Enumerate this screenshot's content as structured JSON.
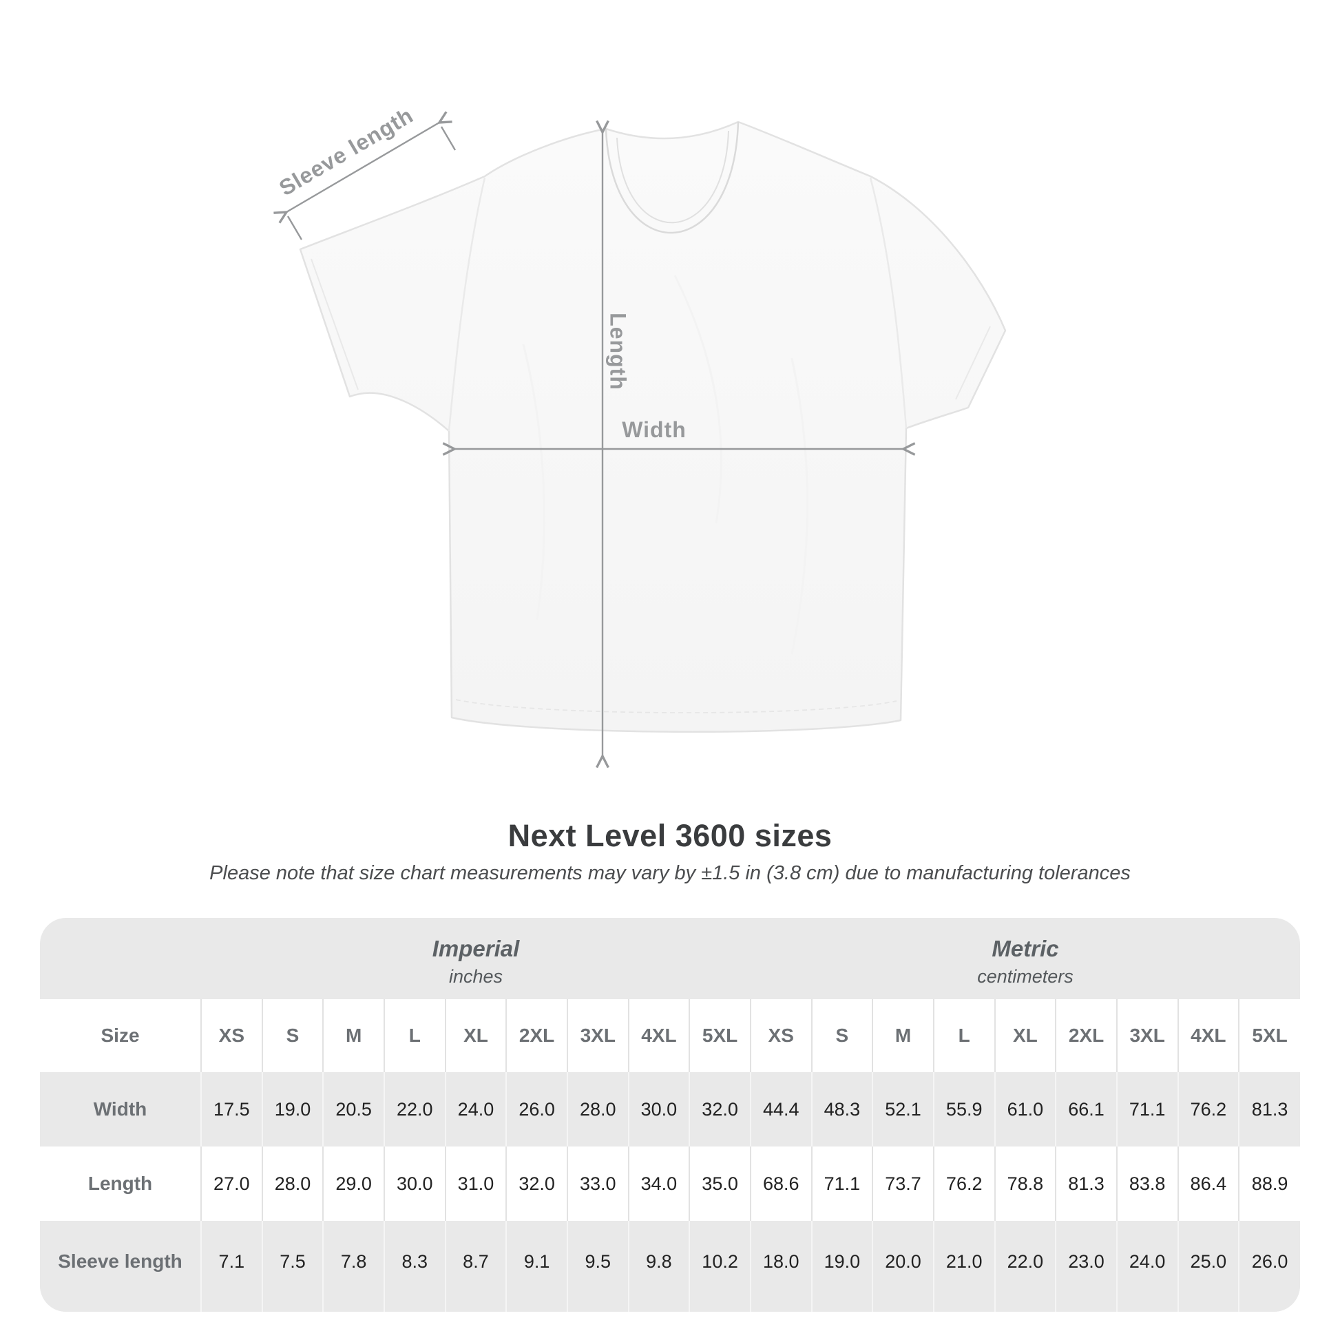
{
  "diagram": {
    "garment": "white-tshirt-front-view",
    "labels": {
      "sleeve": "Sleeve length",
      "length": "Length",
      "width": "Width"
    }
  },
  "title": "Next Level 3600 sizes",
  "note": "Please note that size chart measurements may vary by ±1.5 in (3.8 cm) due to manufacturing tolerances",
  "table": {
    "corner_label": "Size",
    "unit_groups": [
      {
        "name": "Imperial",
        "unit": "inches"
      },
      {
        "name": "Metric",
        "unit": "centimeters"
      }
    ],
    "sizes": [
      "XS",
      "S",
      "M",
      "L",
      "XL",
      "2XL",
      "3XL",
      "4XL",
      "5XL",
      "XS",
      "S",
      "M",
      "L",
      "XL",
      "2XL",
      "3XL",
      "4XL",
      "5XL"
    ],
    "rows": [
      {
        "label": "Width",
        "values": [
          "17.5",
          "19.0",
          "20.5",
          "22.0",
          "24.0",
          "26.0",
          "28.0",
          "30.0",
          "32.0",
          "44.4",
          "48.3",
          "52.1",
          "55.9",
          "61.0",
          "66.1",
          "71.1",
          "76.2",
          "81.3"
        ]
      },
      {
        "label": "Length",
        "values": [
          "27.0",
          "28.0",
          "29.0",
          "30.0",
          "31.0",
          "32.0",
          "33.0",
          "34.0",
          "35.0",
          "68.6",
          "71.1",
          "73.7",
          "76.2",
          "78.8",
          "81.3",
          "83.8",
          "86.4",
          "88.9"
        ]
      },
      {
        "label": "Sleeve length",
        "values": [
          "7.1",
          "7.5",
          "7.8",
          "8.3",
          "8.7",
          "9.1",
          "9.5",
          "9.8",
          "10.2",
          "18.0",
          "19.0",
          "20.0",
          "21.0",
          "22.0",
          "23.0",
          "24.0",
          "25.0",
          "26.0"
        ]
      }
    ]
  },
  "chart_data": {
    "type": "table",
    "title": "Next Level 3600 sizes",
    "note": "Please note that size chart measurements may vary by ±1.5 in (3.8 cm) due to manufacturing tolerances",
    "column_groups": [
      "Imperial (inches)",
      "Metric (centimeters)"
    ],
    "sizes": [
      "XS",
      "S",
      "M",
      "L",
      "XL",
      "2XL",
      "3XL",
      "4XL",
      "5XL"
    ],
    "rows": [
      {
        "measure": "Width",
        "imperial_in": [
          17.5,
          19.0,
          20.5,
          22.0,
          24.0,
          26.0,
          28.0,
          30.0,
          32.0
        ],
        "metric_cm": [
          44.4,
          48.3,
          52.1,
          55.9,
          61.0,
          66.1,
          71.1,
          76.2,
          81.3
        ]
      },
      {
        "measure": "Length",
        "imperial_in": [
          27.0,
          28.0,
          29.0,
          30.0,
          31.0,
          32.0,
          33.0,
          34.0,
          35.0
        ],
        "metric_cm": [
          68.6,
          71.1,
          73.7,
          76.2,
          78.8,
          81.3,
          83.8,
          86.4,
          88.9
        ]
      },
      {
        "measure": "Sleeve length",
        "imperial_in": [
          7.1,
          7.5,
          7.8,
          8.3,
          8.7,
          9.1,
          9.5,
          9.8,
          10.2
        ],
        "metric_cm": [
          18.0,
          19.0,
          20.0,
          21.0,
          22.0,
          23.0,
          24.0,
          25.0,
          26.0
        ]
      }
    ]
  },
  "colors": {
    "annotation": "#97999b",
    "title_text": "#3a3c3e",
    "note_text": "#4b4d4f",
    "table_bg": "#e9e9e9",
    "row_alt_bg": "#ffffff",
    "header_text": "#5c6165",
    "label_text": "#6c7074",
    "value_text": "#222222",
    "shirt_outline": "#e2e2e2"
  }
}
